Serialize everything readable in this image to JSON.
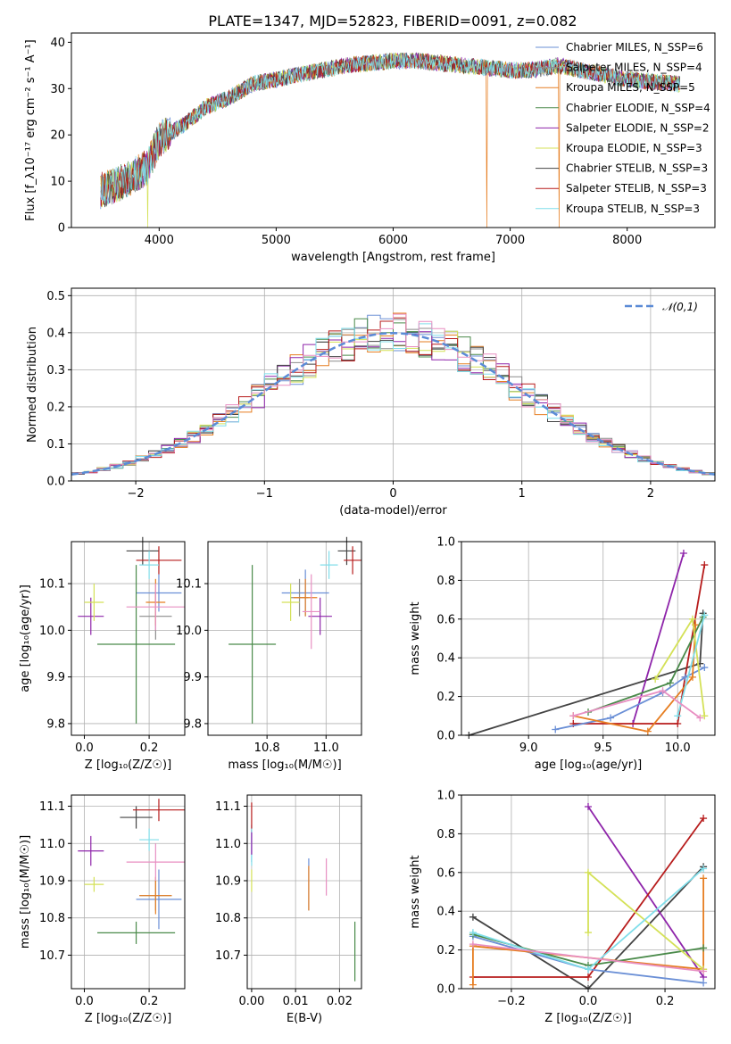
{
  "title": "PLATE=1347, MJD=52823, FIBERID=0091, z=0.082",
  "chart_data": [
    {
      "type": "line",
      "name": "spectrum",
      "xlabel": "wavelength [Angstrom, rest frame]",
      "ylabel": "Flux [f_λ10⁻¹⁷ erg cm⁻² s⁻¹ A⁻¹]",
      "xlim": [
        3250,
        8750
      ],
      "ylim": [
        0,
        42
      ],
      "xticks": [
        4000,
        5000,
        6000,
        7000,
        8000
      ],
      "yticks": [
        0,
        10,
        20,
        30,
        40
      ],
      "grid": false,
      "legend_position": "right",
      "series": [
        {
          "name": "Chabrier MILES, N_SSP=6",
          "color": "#6a8fd6"
        },
        {
          "name": "Salpeter MILES, N_SSP=4",
          "color": "#8c8c8c"
        },
        {
          "name": "Kroupa MILES, N_SSP=5",
          "color": "#e67e22"
        },
        {
          "name": "Chabrier ELODIE, N_SSP=4",
          "color": "#4a8a4a"
        },
        {
          "name": "Salpeter ELODIE, N_SSP=2",
          "color": "#8e24aa"
        },
        {
          "name": "Kroupa ELODIE, N_SSP=3",
          "color": "#d4e157"
        },
        {
          "name": "Chabrier STELIB, N_SSP=3",
          "color": "#444444"
        },
        {
          "name": "Salpeter STELIB, N_SSP=3",
          "color": "#b71c1c"
        },
        {
          "name": "Kroupa STELIB, N_SSP=3",
          "color": "#80deea"
        }
      ],
      "continuum": {
        "x": [
          3500,
          3700,
          3900,
          4000,
          4200,
          4400,
          4600,
          4800,
          5000,
          5200,
          5400,
          5600,
          5800,
          6000,
          6200,
          6400,
          6600,
          6800,
          7000,
          7200,
          7400,
          7600,
          7800,
          8000,
          8200,
          8450
        ],
        "y": [
          8,
          10,
          13,
          19,
          22,
          26,
          28,
          31,
          32,
          33,
          34,
          35,
          35.5,
          36,
          36,
          35.5,
          35,
          34.5,
          34,
          34,
          35,
          34,
          33,
          32,
          31.5,
          31
        ]
      },
      "dips": [
        {
          "x": 6800,
          "y": 0
        },
        {
          "x": 7420,
          "y": 0
        },
        {
          "x": 3900,
          "y": 0
        },
        {
          "x": 5890,
          "y": 28
        }
      ]
    },
    {
      "type": "line",
      "name": "residual-histogram",
      "xlabel": "(data-model)/error",
      "ylabel": "Normed distribution",
      "xlim": [
        -2.5,
        2.5
      ],
      "ylim": [
        0,
        0.52
      ],
      "xticks": [
        -2,
        -1,
        0,
        1,
        2
      ],
      "yticks": [
        0.0,
        0.1,
        0.2,
        0.3,
        0.4,
        0.5
      ],
      "grid": true,
      "legend": "𝒩(0,1)",
      "legend_position": "upper right"
    },
    {
      "type": "scatter",
      "name": "age-vs-Z",
      "xlabel": "Z [log₁₀(Z/Z☉)]",
      "ylabel": "age  [log₁₀(age/yr)]",
      "xlim": [
        -0.04,
        0.31
      ],
      "ylim": [
        9.775,
        10.19
      ],
      "xticks": [
        0.0,
        0.2
      ],
      "yticks": [
        9.8,
        9.9,
        10.0,
        10.1
      ],
      "grid": true,
      "points": [
        {
          "x": 0.23,
          "y": 10.08,
          "xerr": 0.07,
          "yerr": 0.04,
          "color": "#6a8fd6"
        },
        {
          "x": 0.22,
          "y": 10.03,
          "xerr": 0.05,
          "yerr": 0.05,
          "color": "#8c8c8c"
        },
        {
          "x": 0.22,
          "y": 10.06,
          "xerr": 0.03,
          "yerr": 0.05,
          "color": "#e67e22"
        },
        {
          "x": 0.16,
          "y": 9.97,
          "xerr": 0.12,
          "yerr": 0.17,
          "color": "#4a8a4a"
        },
        {
          "x": 0.02,
          "y": 10.03,
          "xerr": 0.04,
          "yerr": 0.04,
          "color": "#8e24aa"
        },
        {
          "x": 0.03,
          "y": 10.06,
          "xerr": 0.03,
          "yerr": 0.04,
          "color": "#d4e157"
        },
        {
          "x": 0.18,
          "y": 10.17,
          "xerr": 0.05,
          "yerr": 0.03,
          "color": "#444444"
        },
        {
          "x": 0.23,
          "y": 10.15,
          "xerr": 0.07,
          "yerr": 0.03,
          "color": "#b71c1c"
        },
        {
          "x": 0.2,
          "y": 10.14,
          "xerr": 0.03,
          "yerr": 0.03,
          "color": "#80deea"
        },
        {
          "x": 0.22,
          "y": 10.05,
          "xerr": 0.09,
          "yerr": 0.05,
          "color": "#e88fc2"
        }
      ]
    },
    {
      "type": "scatter",
      "name": "age-vs-mass",
      "xlabel": "mass [log₁₀(M/M☉)]",
      "ylabel": "",
      "xlim": [
        10.6,
        11.12
      ],
      "ylim": [
        9.775,
        10.19
      ],
      "xticks": [
        10.8,
        11.0
      ],
      "yticks": [
        9.8,
        9.9,
        10.0,
        10.1
      ],
      "grid": true,
      "points": [
        {
          "x": 10.93,
          "y": 10.08,
          "xerr": 0.08,
          "yerr": 0.05,
          "color": "#6a8fd6"
        },
        {
          "x": 10.91,
          "y": 10.07,
          "xerr": 0.03,
          "yerr": 0.04,
          "color": "#8c8c8c"
        },
        {
          "x": 10.93,
          "y": 10.07,
          "xerr": 0.04,
          "yerr": 0.04,
          "color": "#e67e22"
        },
        {
          "x": 10.75,
          "y": 9.97,
          "xerr": 0.08,
          "yerr": 0.17,
          "color": "#4a8a4a"
        },
        {
          "x": 10.98,
          "y": 10.03,
          "xerr": 0.04,
          "yerr": 0.04,
          "color": "#8e24aa"
        },
        {
          "x": 10.88,
          "y": 10.06,
          "xerr": 0.03,
          "yerr": 0.04,
          "color": "#d4e157"
        },
        {
          "x": 11.07,
          "y": 10.17,
          "xerr": 0.03,
          "yerr": 0.03,
          "color": "#444444"
        },
        {
          "x": 11.09,
          "y": 10.15,
          "xerr": 0.03,
          "yerr": 0.03,
          "color": "#b71c1c"
        },
        {
          "x": 11.01,
          "y": 10.14,
          "xerr": 0.03,
          "yerr": 0.03,
          "color": "#80deea"
        },
        {
          "x": 10.95,
          "y": 10.04,
          "xerr": 0.03,
          "yerr": 0.08,
          "color": "#e88fc2"
        }
      ]
    },
    {
      "type": "line",
      "name": "mass-weight-vs-age",
      "xlabel": "age  [log₁₀(age/yr)]",
      "ylabel": "mass weight",
      "xlim": [
        8.55,
        10.25
      ],
      "ylim": [
        0,
        1.0
      ],
      "xticks": [
        9.0,
        9.5,
        10.0
      ],
      "yticks": [
        0.0,
        0.2,
        0.4,
        0.6,
        0.8,
        1.0
      ],
      "grid": true,
      "series": [
        {
          "color": "#444444",
          "x": [
            8.6,
            10.15,
            10.17
          ],
          "y": [
            0.0,
            0.37,
            0.63
          ]
        },
        {
          "color": "#8e24aa",
          "x": [
            9.7,
            10.04
          ],
          "y": [
            0.06,
            0.94
          ]
        },
        {
          "color": "#b71c1c",
          "x": [
            9.3,
            10.0,
            10.05,
            10.18
          ],
          "y": [
            0.06,
            0.06,
            0.3,
            0.88
          ]
        },
        {
          "color": "#6a8fd6",
          "x": [
            9.18,
            9.55,
            9.9,
            10.05,
            10.18
          ],
          "y": [
            0.03,
            0.09,
            0.22,
            0.3,
            0.35
          ]
        },
        {
          "color": "#e67e22",
          "x": [
            9.3,
            9.8,
            10.1,
            10.12
          ],
          "y": [
            0.1,
            0.02,
            0.3,
            0.57
          ]
        },
        {
          "color": "#4a8a4a",
          "x": [
            9.4,
            9.95,
            10.17
          ],
          "y": [
            0.12,
            0.27,
            0.61
          ]
        },
        {
          "color": "#d4e157",
          "x": [
            9.85,
            10.1,
            10.18
          ],
          "y": [
            0.29,
            0.6,
            0.1
          ]
        },
        {
          "color": "#80deea",
          "x": [
            10.0,
            10.18
          ],
          "y": [
            0.1,
            0.62
          ]
        },
        {
          "color": "#e88fc2",
          "x": [
            9.3,
            9.9,
            10.15
          ],
          "y": [
            0.1,
            0.23,
            0.09
          ]
        }
      ]
    },
    {
      "type": "scatter",
      "name": "mass-vs-Z",
      "xlabel": "Z [log₁₀(Z/Z☉)]",
      "ylabel": "mass [log₁₀(M/M☉)]",
      "xlim": [
        -0.04,
        0.31
      ],
      "ylim": [
        10.61,
        11.13
      ],
      "xticks": [
        0.0,
        0.2
      ],
      "yticks": [
        10.7,
        10.8,
        10.9,
        11.0,
        11.1
      ],
      "grid": true,
      "points": [
        {
          "x": 0.23,
          "y": 10.85,
          "xerr": 0.07,
          "yerr": 0.08,
          "color": "#6a8fd6"
        },
        {
          "x": 0.22,
          "y": 10.86,
          "xerr": 0.05,
          "yerr": 0.04,
          "color": "#8c8c8c"
        },
        {
          "x": 0.22,
          "y": 10.86,
          "xerr": 0.05,
          "yerr": 0.05,
          "color": "#e67e22"
        },
        {
          "x": 0.16,
          "y": 10.76,
          "xerr": 0.12,
          "yerr": 0.03,
          "color": "#4a8a4a"
        },
        {
          "x": 0.02,
          "y": 10.98,
          "xerr": 0.04,
          "yerr": 0.04,
          "color": "#8e24aa"
        },
        {
          "x": 0.03,
          "y": 10.89,
          "xerr": 0.03,
          "yerr": 0.02,
          "color": "#d4e157"
        },
        {
          "x": 0.16,
          "y": 11.07,
          "xerr": 0.05,
          "yerr": 0.03,
          "color": "#444444"
        },
        {
          "x": 0.23,
          "y": 11.09,
          "xerr": 0.08,
          "yerr": 0.03,
          "color": "#b71c1c"
        },
        {
          "x": 0.2,
          "y": 11.01,
          "xerr": 0.03,
          "yerr": 0.03,
          "color": "#80deea"
        },
        {
          "x": 0.22,
          "y": 10.95,
          "xerr": 0.09,
          "yerr": 0.05,
          "color": "#e88fc2"
        }
      ]
    },
    {
      "type": "scatter",
      "name": "mass-vs-EBV",
      "xlabel": "E(B-V)",
      "ylabel": "",
      "xlim": [
        -0.001,
        0.025
      ],
      "ylim": [
        10.61,
        11.13
      ],
      "xticks": [
        0.0,
        0.01,
        0.02
      ],
      "yticks": [
        10.7,
        10.8,
        10.9,
        11.0,
        11.1
      ],
      "grid": true,
      "points": [
        {
          "x": 0.0,
          "y": 11.0,
          "yerr": 0.05,
          "color": "#6a8fd6"
        },
        {
          "x": 0.0,
          "y": 11.07,
          "yerr": 0.04,
          "color": "#b71c1c"
        },
        {
          "x": 0.0,
          "y": 10.9,
          "yerr": 0.03,
          "color": "#d4e157"
        },
        {
          "x": 0.0,
          "y": 10.99,
          "yerr": 0.05,
          "color": "#80deea"
        },
        {
          "x": 0.0,
          "y": 11.0,
          "yerr": 0.03,
          "color": "#8e24aa"
        },
        {
          "x": 0.013,
          "y": 10.89,
          "yerr": 0.07,
          "color": "#6a8fd6"
        },
        {
          "x": 0.013,
          "y": 10.88,
          "yerr": 0.06,
          "color": "#e67e22"
        },
        {
          "x": 0.017,
          "y": 10.91,
          "yerr": 0.05,
          "color": "#e88fc2"
        },
        {
          "x": 0.0235,
          "y": 10.71,
          "yerr": 0.08,
          "color": "#4a8a4a"
        }
      ]
    },
    {
      "type": "line",
      "name": "mass-weight-vs-Z",
      "xlabel": "Z [log₁₀(Z/Z☉)]",
      "ylabel": "mass weight",
      "xlim": [
        -0.33,
        0.33
      ],
      "ylim": [
        0,
        1.0
      ],
      "xticks": [
        -0.2,
        0.0,
        0.2
      ],
      "yticks": [
        0.0,
        0.2,
        0.4,
        0.6,
        0.8,
        1.0
      ],
      "grid": true,
      "series": [
        {
          "color": "#444444",
          "x": [
            -0.3,
            0.0,
            0.3
          ],
          "y": [
            0.37,
            0.0,
            0.63
          ]
        },
        {
          "color": "#8e24aa",
          "x": [
            0.0,
            0.3
          ],
          "y": [
            0.94,
            0.06
          ]
        },
        {
          "color": "#b71c1c",
          "x": [
            -0.3,
            0.0,
            0.3
          ],
          "y": [
            0.06,
            0.06,
            0.88
          ]
        },
        {
          "color": "#6a8fd6",
          "x": [
            -0.3,
            0.0,
            0.3
          ],
          "y": [
            0.27,
            0.1,
            0.03
          ]
        },
        {
          "color": "#e67e22",
          "x": [
            -0.3,
            -0.3,
            0.3,
            0.3
          ],
          "y": [
            0.02,
            0.22,
            0.1,
            0.57
          ]
        },
        {
          "color": "#4a8a4a",
          "x": [
            -0.3,
            0.0,
            0.3
          ],
          "y": [
            0.28,
            0.12,
            0.21
          ]
        },
        {
          "color": "#d4e157",
          "x": [
            0.0,
            0.0,
            0.3
          ],
          "y": [
            0.29,
            0.6,
            0.1
          ]
        },
        {
          "color": "#80deea",
          "x": [
            -0.3,
            0.0,
            0.3
          ],
          "y": [
            0.29,
            0.1,
            0.62
          ]
        },
        {
          "color": "#e88fc2",
          "x": [
            -0.3,
            0.3
          ],
          "y": [
            0.23,
            0.09
          ]
        }
      ]
    }
  ]
}
